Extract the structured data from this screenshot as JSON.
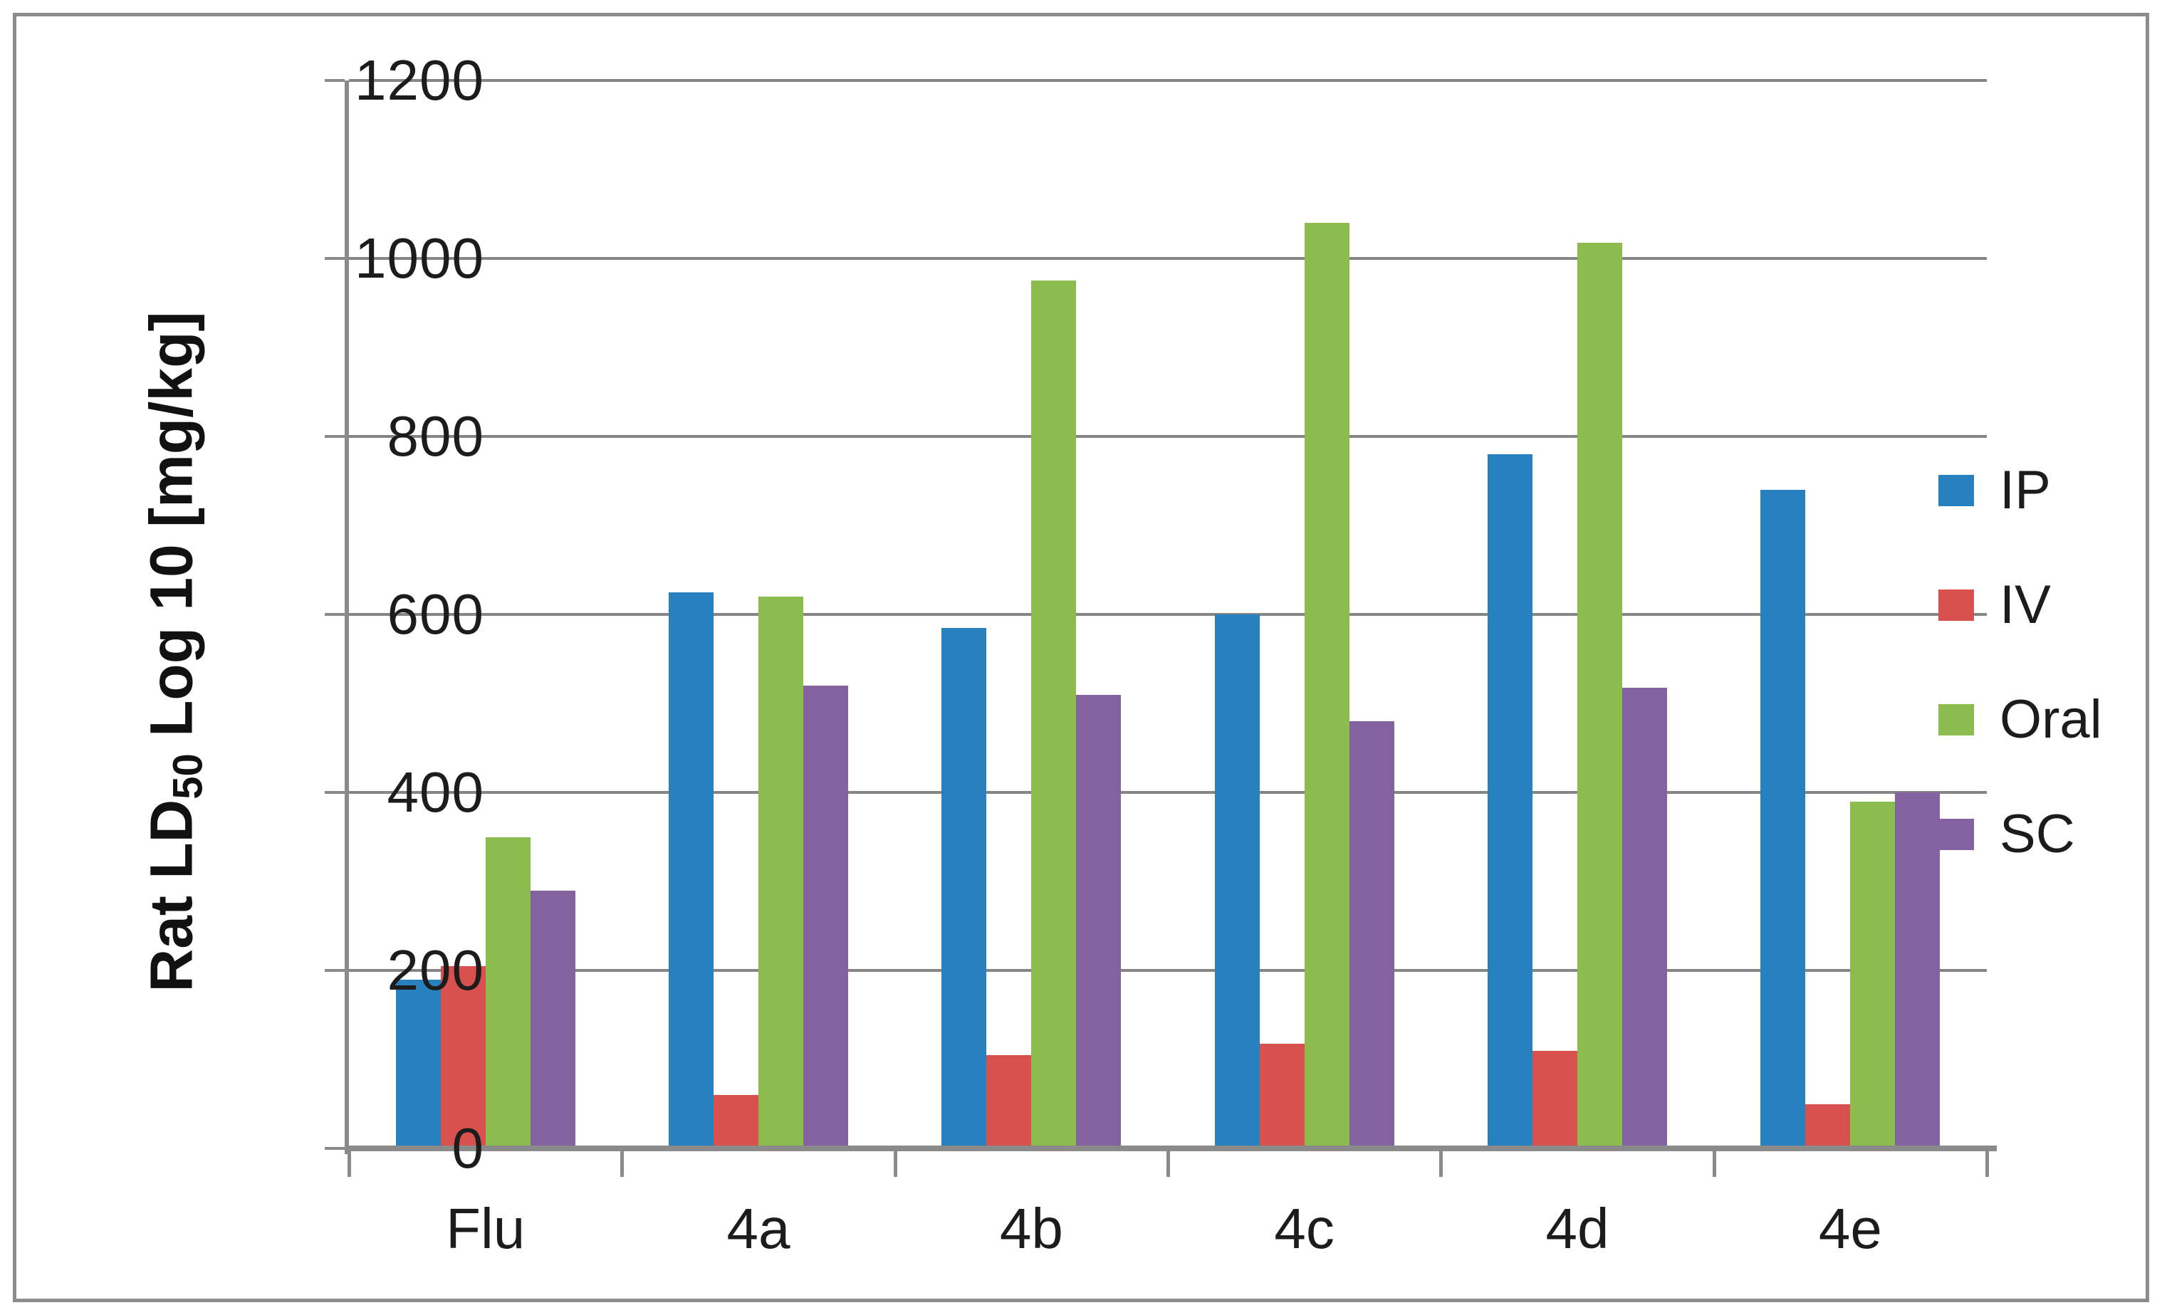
{
  "chart_data": {
    "type": "bar",
    "title": "",
    "categories": [
      "Flu",
      "4a",
      "4b",
      "4c",
      "4d",
      "4e"
    ],
    "series": [
      {
        "name": "IP",
        "color": "#2881BF",
        "values": [
          190,
          625,
          585,
          600,
          780,
          740
        ]
      },
      {
        "name": "IV",
        "color": "#D9514E",
        "values": [
          205,
          60,
          105,
          118,
          110,
          50
        ]
      },
      {
        "name": "Oral",
        "color": "#8CBB4E",
        "values": [
          350,
          620,
          975,
          1040,
          1018,
          390
        ]
      },
      {
        "name": "SC",
        "color": "#84619F",
        "values": [
          290,
          520,
          510,
          480,
          518,
          400
        ]
      }
    ],
    "xlabel": "",
    "ylabel": "Rat LD50 Log 10 [mg/kg]",
    "ylabel_parts": {
      "prefix": "Rat LD",
      "subscript": "50",
      "suffix": " Log 10 [mg/kg]"
    },
    "ylim": [
      0,
      1200
    ],
    "yticks": [
      "0",
      "200",
      "400",
      "600",
      "800",
      "1000",
      "1200"
    ],
    "grid": true,
    "legend_position": "right",
    "legend_labels": [
      "IP",
      "IV",
      "Oral",
      "SC"
    ]
  },
  "colors": {
    "background": "#ffffff",
    "frame_border": "#8c8c8c",
    "gridline": "#858585",
    "axis": "#8a8a8a",
    "text": "#1c1c1c"
  }
}
